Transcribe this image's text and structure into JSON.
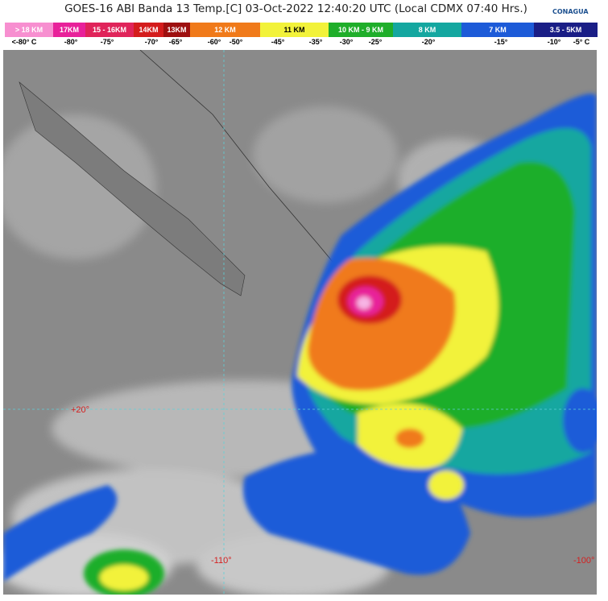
{
  "header": {
    "title": "GOES-16 ABI Banda 13 Temp.[C] 03-Oct-2022 12:40:20 UTC (Local CDMX  07:40 Hrs.)",
    "logo": "CONAGUA"
  },
  "legend": {
    "bands": [
      {
        "label": "> 18 KM",
        "color": "#f78fd0"
      },
      {
        "label": "17KM",
        "color": "#e8219a"
      },
      {
        "label": "15 - 16KM",
        "color": "#e0245a"
      },
      {
        "label": "14KM",
        "color": "#d41c1c"
      },
      {
        "label": "13KM",
        "color": "#9e1010"
      },
      {
        "label": "12 KM",
        "color": "#f07a1a"
      },
      {
        "label": "11 KM",
        "color": "#f2f23a"
      },
      {
        "label": "10 KM - 9 KM",
        "color": "#1fae2a"
      },
      {
        "label": "8 KM",
        "color": "#14a7a0"
      },
      {
        "label": "7 KM",
        "color": "#1d5bd8"
      },
      {
        "label": "3.5 - 5KM",
        "color": "#1a1e86"
      }
    ],
    "temps": [
      "<-80° C",
      "-80°",
      "-75°",
      "-70°",
      "-65°",
      "-60°",
      "-50°",
      "-45°",
      "-35°",
      "-30°",
      "-25°",
      "-20°",
      "-15°",
      "-10°",
      "-5° C"
    ]
  },
  "map": {
    "labels": [
      "+20°",
      "-110°",
      "-100°"
    ]
  }
}
